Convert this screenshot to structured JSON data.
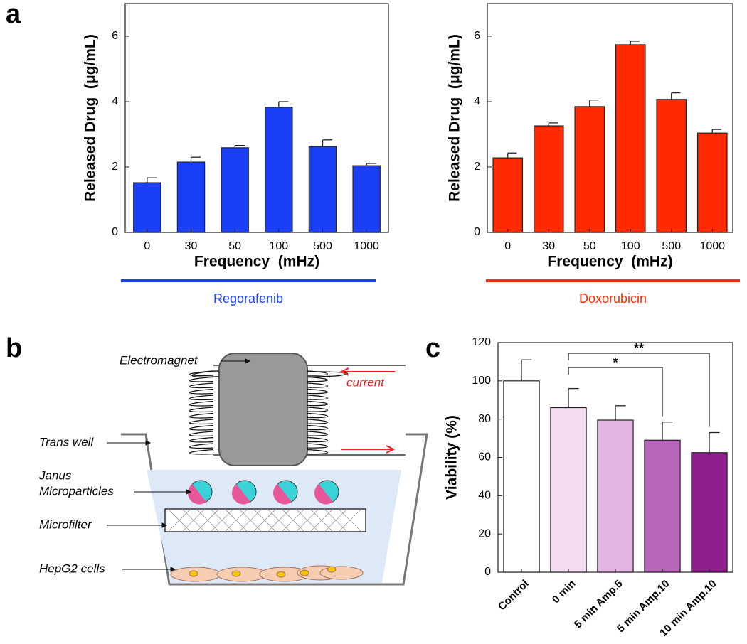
{
  "panel_labels": [
    "a",
    "b",
    "c"
  ],
  "diagram": {
    "labels": [
      "Electromagnet",
      "current",
      "Trans well",
      "Janus",
      "Microparticles",
      "Microfilter",
      "HepG2 cells"
    ]
  },
  "chart_data": [
    {
      "type": "bar",
      "ylabel": "Released Drug  (μg/mL)",
      "xlabel": "Frequency  (mHz)",
      "caption": "Regorafenib",
      "categories": [
        "0",
        "30",
        "50",
        "100",
        "500",
        "1000"
      ],
      "values": [
        1.52,
        2.15,
        2.59,
        3.83,
        2.63,
        2.04
      ],
      "errors": [
        0.15,
        0.15,
        0.07,
        0.17,
        0.2,
        0.07
      ],
      "color": "#1a3ff5",
      "ylim": [
        0,
        7
      ],
      "yticks": [
        0,
        2,
        4,
        6
      ]
    },
    {
      "type": "bar",
      "ylabel": "Released Drug  (μg/mL)",
      "xlabel": "Frequency  (mHz)",
      "caption": "Doxorubicin",
      "categories": [
        "0",
        "30",
        "50",
        "100",
        "500",
        "1000"
      ],
      "values": [
        2.28,
        3.26,
        3.85,
        5.74,
        4.07,
        3.04
      ],
      "errors": [
        0.15,
        0.09,
        0.2,
        0.11,
        0.2,
        0.11
      ],
      "color": "#ff2a00",
      "ylim": [
        0,
        7
      ],
      "yticks": [
        0,
        2,
        4,
        6
      ]
    },
    {
      "type": "bar",
      "ylabel": "Viability (%)",
      "categories": [
        "Control",
        "0 min",
        "5 min Amp.5",
        "5 min Amp.10",
        "10 min Amp.10"
      ],
      "values": [
        100,
        86,
        79.5,
        69,
        62.5
      ],
      "errors": [
        11,
        10,
        7.5,
        9.5,
        10.5
      ],
      "colors": [
        "#ffffff",
        "#f4dcf2",
        "#e3b3e2",
        "#b865b9",
        "#8e1e8c"
      ],
      "ylim": [
        0,
        120
      ],
      "yticks": [
        0,
        20,
        40,
        60,
        80,
        100,
        120
      ],
      "annotations": [
        {
          "label": "*",
          "from": 1,
          "to": 3
        },
        {
          "label": "**",
          "from": 1,
          "to": 4
        }
      ]
    }
  ]
}
